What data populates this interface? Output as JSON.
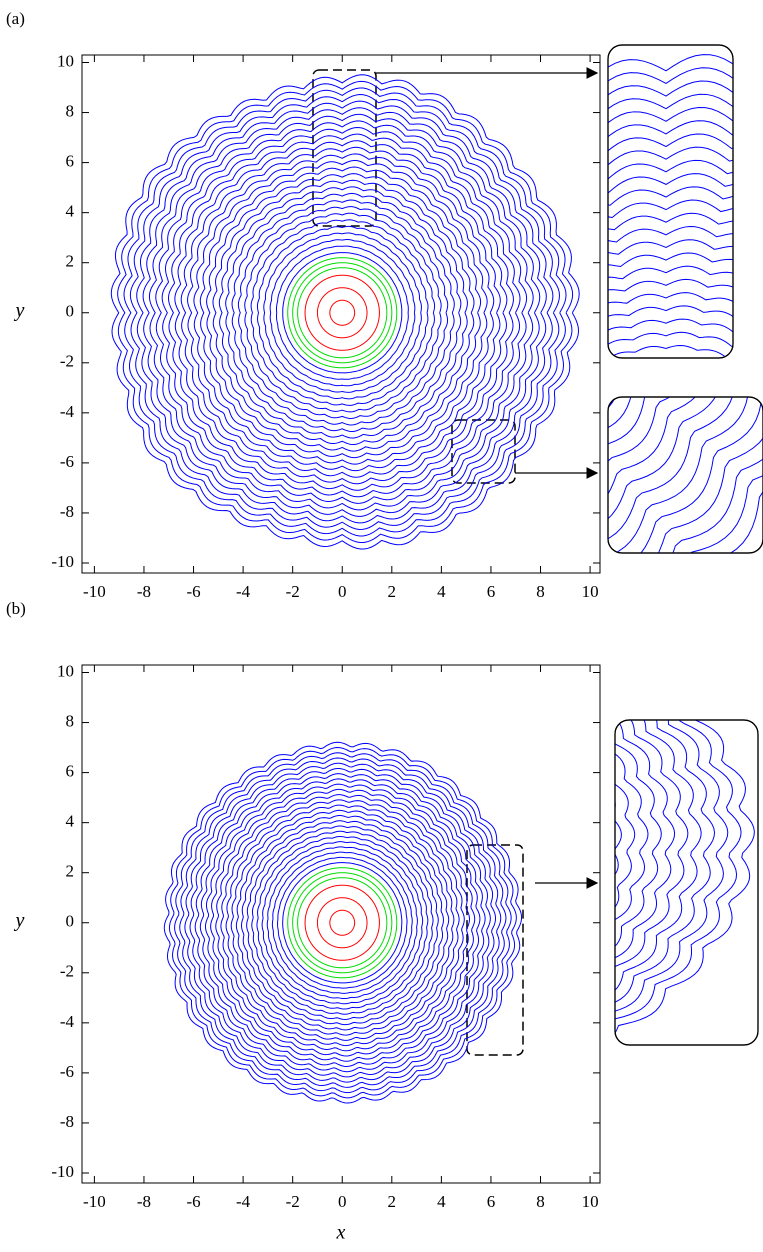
{
  "chart_data": [
    {
      "type": "contour",
      "panel_label": "(a)",
      "y_label": "y",
      "xlim": [
        -10.5,
        10.4
      ],
      "ylim": [
        -10.4,
        10.3
      ],
      "xticks": [
        -10,
        -8,
        -6,
        -4,
        -2,
        0,
        2,
        4,
        6,
        8,
        10
      ],
      "yticks": [
        -10,
        -8,
        -6,
        -4,
        -2,
        0,
        2,
        4,
        6,
        8,
        10
      ],
      "series": [
        {
          "color": "#ff0000",
          "values": [
            0.5,
            1.0,
            1.5
          ]
        },
        {
          "color": "#00dd00",
          "values": [
            1.8,
            2.0,
            2.2
          ]
        },
        {
          "color": "#0000ff",
          "values": [
            2.4,
            2.65,
            2.9,
            3.15,
            3.4,
            3.65,
            3.9,
            4.15,
            4.4,
            4.65,
            4.9,
            5.15,
            5.4,
            5.65,
            5.9,
            6.15,
            6.4,
            6.65,
            6.9,
            7.15,
            7.4,
            7.65,
            7.9,
            8.15,
            8.4,
            8.65,
            8.9,
            9.15
          ]
        }
      ]
    },
    {
      "type": "contour",
      "panel_label": "(b)",
      "y_label": "y",
      "x_label": "x",
      "xlim": [
        -10.5,
        10.4
      ],
      "ylim": [
        -10.4,
        10.3
      ],
      "xticks": [
        -10,
        -8,
        -6,
        -4,
        -2,
        0,
        2,
        4,
        6,
        8,
        10
      ],
      "yticks": [
        -10,
        -8,
        -6,
        -4,
        -2,
        0,
        2,
        4,
        6,
        8,
        10
      ],
      "series": [
        {
          "color": "#ff0000",
          "values": [
            0.5,
            1.0,
            1.5
          ]
        },
        {
          "color": "#00dd00",
          "values": [
            1.8,
            2.0,
            2.2
          ]
        },
        {
          "color": "#0000ff",
          "values": [
            2.4,
            2.6,
            2.8,
            3.0,
            3.2,
            3.4,
            3.6,
            3.8,
            4.0,
            4.2,
            4.4,
            4.6,
            4.8,
            5.0,
            5.2,
            5.4,
            5.6,
            5.8,
            6.0,
            6.2,
            6.4,
            6.6,
            6.8,
            7.0
          ]
        }
      ]
    }
  ]
}
